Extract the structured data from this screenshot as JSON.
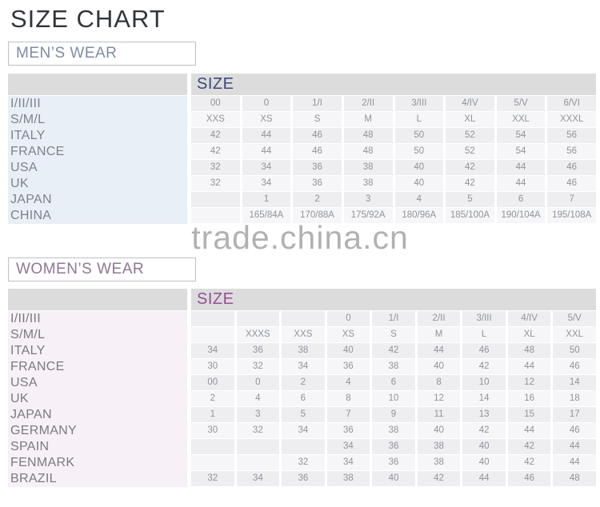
{
  "page": {
    "title": "SIZE CHART",
    "watermark": "trade.china.cn",
    "background": "#ffffff"
  },
  "tables": [
    {
      "id": "mens-size-table",
      "section_label": "MEN’S WEAR",
      "section_color": "#7d8ca8",
      "header_label": "SIZE",
      "header_color": "#3b4878",
      "header_bg": "#dcdcdc",
      "label_bg": "#e9eff6",
      "label_color": "#7e838d",
      "rows": [
        {
          "label": "I/II/III",
          "cells": [
            "00",
            "0",
            "1/I",
            "2/II",
            "3/III",
            "4/IV",
            "5/V",
            "6/VI"
          ]
        },
        {
          "label": "S/M/L",
          "cells": [
            "XXS",
            "XS",
            "S",
            "M",
            "L",
            "XL",
            "XXL",
            "XXXL"
          ]
        },
        {
          "label": "ITALY",
          "cells": [
            "42",
            "44",
            "46",
            "48",
            "50",
            "52",
            "54",
            "56"
          ]
        },
        {
          "label": "FRANCE",
          "cells": [
            "42",
            "44",
            "46",
            "48",
            "50",
            "52",
            "54",
            "56"
          ]
        },
        {
          "label": "USA",
          "cells": [
            "32",
            "34",
            "36",
            "38",
            "40",
            "42",
            "44",
            "46"
          ]
        },
        {
          "label": "UK",
          "cells": [
            "32",
            "34",
            "36",
            "38",
            "40",
            "42",
            "44",
            "46"
          ]
        },
        {
          "label": "JAPAN",
          "cells": [
            "",
            "1",
            "2",
            "3",
            "4",
            "5",
            "6",
            "7"
          ]
        },
        {
          "label": "CHINA",
          "cells": [
            "",
            "165/84A",
            "170/88A",
            "175/92A",
            "180/96A",
            "185/100A",
            "190/104A",
            "195/108A"
          ]
        }
      ]
    },
    {
      "id": "womens-size-table",
      "section_label": "WOMEN’S WEAR",
      "section_color": "#8f7795",
      "header_label": "SIZE",
      "header_color": "#94508e",
      "header_bg": "#dcdcdc",
      "label_bg": "#f7f0f6",
      "label_color": "#7d7882",
      "rows": [
        {
          "label": "I/II/III",
          "cells": [
            "",
            "",
            "",
            "0",
            "1/I",
            "2/II",
            "3/III",
            "4/IV",
            "5/V"
          ]
        },
        {
          "label": "S/M/L",
          "cells": [
            "",
            "XXXS",
            "XXS",
            "XS",
            "S",
            "M",
            "L",
            "XL",
            "XXL"
          ]
        },
        {
          "label": "ITALY",
          "cells": [
            "34",
            "36",
            "38",
            "40",
            "42",
            "44",
            "46",
            "48",
            "50"
          ]
        },
        {
          "label": "FRANCE",
          "cells": [
            "30",
            "32",
            "34",
            "36",
            "38",
            "40",
            "42",
            "44",
            "46"
          ]
        },
        {
          "label": "USA",
          "cells": [
            "00",
            "0",
            "2",
            "4",
            "6",
            "8",
            "10",
            "12",
            "14"
          ]
        },
        {
          "label": "UK",
          "cells": [
            "2",
            "4",
            "6",
            "8",
            "10",
            "12",
            "14",
            "16",
            "18"
          ]
        },
        {
          "label": "JAPAN",
          "cells": [
            "1",
            "3",
            "5",
            "7",
            "9",
            "11",
            "13",
            "15",
            "17"
          ]
        },
        {
          "label": "GERMANY",
          "cells": [
            "30",
            "32",
            "34",
            "36",
            "38",
            "40",
            "42",
            "44",
            "46"
          ]
        },
        {
          "label": "SPAIN",
          "cells": [
            "",
            "",
            "",
            "34",
            "36",
            "38",
            "40",
            "42",
            "44"
          ]
        },
        {
          "label": "FENMARK",
          "cells": [
            "",
            "",
            "32",
            "34",
            "36",
            "38",
            "40",
            "42",
            "44"
          ]
        },
        {
          "label": "BRAZIL",
          "cells": [
            "32",
            "34",
            "36",
            "38",
            "40",
            "42",
            "44",
            "46",
            "48"
          ]
        }
      ]
    }
  ]
}
